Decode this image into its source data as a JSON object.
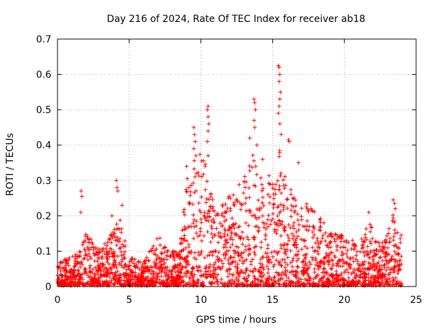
{
  "chart_data": {
    "type": "scatter",
    "title": "Day 216 of 2024, Rate Of TEC Index for receiver ab18",
    "xlabel": "GPS time / hours",
    "ylabel": "ROTI / TECUs",
    "xlim": [
      0,
      25
    ],
    "ylim": [
      0,
      0.7
    ],
    "x_ticks": [
      0,
      5,
      10,
      15,
      20,
      25
    ],
    "x_tick_labels": [
      "0",
      "5",
      "10",
      "15",
      "20",
      "25"
    ],
    "y_ticks": [
      0,
      0.1,
      0.2,
      0.3,
      0.4,
      0.5,
      0.6,
      0.7
    ],
    "y_tick_labels": [
      "0",
      "0.1",
      "0.2",
      "0.3",
      "0.4",
      "0.5",
      "0.6",
      "0.7"
    ],
    "grid": true,
    "marker": "+",
    "marker_color": "#ff0000",
    "data_range_hours": [
      0,
      24
    ],
    "envelope": {
      "hours": [
        0,
        1,
        1.6,
        2,
        3,
        3.8,
        4.3,
        5,
        6,
        7,
        8,
        8.5,
        9,
        9.5,
        10,
        10.5,
        11,
        12,
        13,
        13.5,
        14,
        14.5,
        15,
        15.5,
        16,
        16.5,
        17,
        18,
        19,
        20,
        21,
        21.8,
        22,
        23,
        23.5,
        24
      ],
      "upper": [
        0.07,
        0.08,
        0.1,
        0.16,
        0.1,
        0.15,
        0.2,
        0.08,
        0.07,
        0.14,
        0.1,
        0.09,
        0.3,
        0.35,
        0.4,
        0.33,
        0.22,
        0.26,
        0.3,
        0.38,
        0.35,
        0.3,
        0.33,
        0.42,
        0.3,
        0.25,
        0.24,
        0.22,
        0.16,
        0.14,
        0.12,
        0.2,
        0.12,
        0.15,
        0.22,
        0.14
      ]
    },
    "peaks": [
      {
        "x": 1.65,
        "y": 0.27
      },
      {
        "x": 1.7,
        "y": 0.255
      },
      {
        "x": 1.62,
        "y": 0.21
      },
      {
        "x": 4.1,
        "y": 0.3
      },
      {
        "x": 4.15,
        "y": 0.28
      },
      {
        "x": 4.2,
        "y": 0.27
      },
      {
        "x": 4.5,
        "y": 0.23
      },
      {
        "x": 3.8,
        "y": 0.2
      },
      {
        "x": 9.5,
        "y": 0.45
      },
      {
        "x": 9.55,
        "y": 0.43
      },
      {
        "x": 9.6,
        "y": 0.41
      },
      {
        "x": 9.5,
        "y": 0.39
      },
      {
        "x": 9.65,
        "y": 0.37
      },
      {
        "x": 10.5,
        "y": 0.51
      },
      {
        "x": 10.45,
        "y": 0.5
      },
      {
        "x": 10.5,
        "y": 0.48
      },
      {
        "x": 10.55,
        "y": 0.46
      },
      {
        "x": 10.5,
        "y": 0.44
      },
      {
        "x": 10.45,
        "y": 0.41
      },
      {
        "x": 10.5,
        "y": 0.37
      },
      {
        "x": 9.0,
        "y": 0.34
      },
      {
        "x": 13.4,
        "y": 0.42
      },
      {
        "x": 13.7,
        "y": 0.53
      },
      {
        "x": 13.75,
        "y": 0.52
      },
      {
        "x": 13.8,
        "y": 0.5
      },
      {
        "x": 13.7,
        "y": 0.47
      },
      {
        "x": 13.75,
        "y": 0.45
      },
      {
        "x": 13.9,
        "y": 0.4
      },
      {
        "x": 14.3,
        "y": 0.36
      },
      {
        "x": 15.4,
        "y": 0.625
      },
      {
        "x": 15.45,
        "y": 0.62
      },
      {
        "x": 15.5,
        "y": 0.6
      },
      {
        "x": 15.45,
        "y": 0.58
      },
      {
        "x": 15.55,
        "y": 0.55
      },
      {
        "x": 15.5,
        "y": 0.53
      },
      {
        "x": 15.45,
        "y": 0.51
      },
      {
        "x": 15.4,
        "y": 0.49
      },
      {
        "x": 15.5,
        "y": 0.46
      },
      {
        "x": 15.6,
        "y": 0.43
      },
      {
        "x": 16.1,
        "y": 0.415
      },
      {
        "x": 16.15,
        "y": 0.41
      },
      {
        "x": 16.8,
        "y": 0.35
      },
      {
        "x": 21.7,
        "y": 0.21
      },
      {
        "x": 23.4,
        "y": 0.245
      },
      {
        "x": 23.5,
        "y": 0.235
      },
      {
        "x": 23.55,
        "y": 0.22
      }
    ]
  }
}
